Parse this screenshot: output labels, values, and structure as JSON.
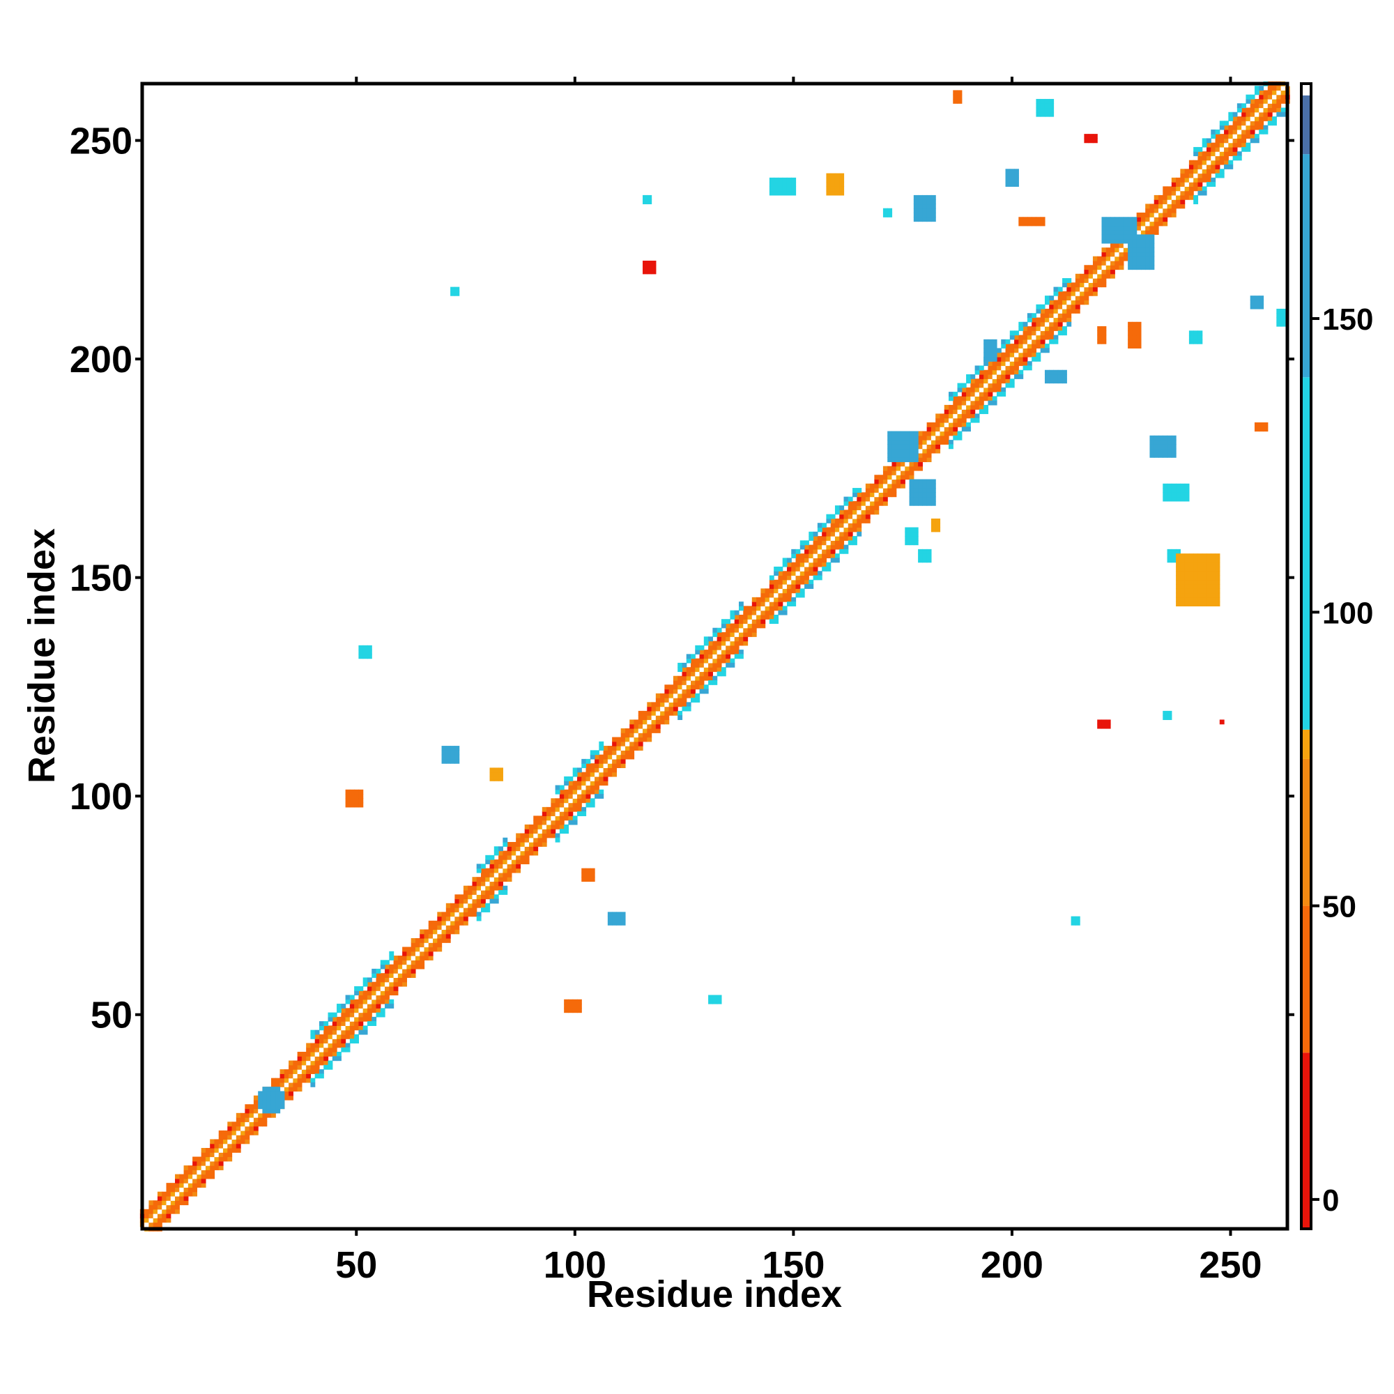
{
  "chart_data": {
    "type": "heatmap",
    "title": "",
    "xlabel": "Residue index",
    "ylabel": "Residue index",
    "xlim": [
      1,
      263
    ],
    "ylim": [
      1,
      263
    ],
    "x_ticks": [
      50,
      100,
      150,
      200,
      250
    ],
    "y_ticks": [
      50,
      100,
      150,
      200,
      250
    ],
    "colorbar": {
      "ticks": [
        0,
        50,
        100,
        150
      ],
      "range": [
        -5,
        190
      ],
      "bands": [
        {
          "from": -5,
          "to": 25,
          "color": "#e8140a"
        },
        {
          "from": 25,
          "to": 50,
          "color": "#f56a0a"
        },
        {
          "from": 50,
          "to": 75,
          "color": "#f38a12"
        },
        {
          "from": 75,
          "to": 80,
          "color": "#f5a30f"
        },
        {
          "from": 80,
          "to": 140,
          "color": "#23d4e3"
        },
        {
          "from": 140,
          "to": 178,
          "color": "#37a6d4"
        },
        {
          "from": 178,
          "to": 188,
          "color": "#4a70a8"
        },
        {
          "from": 188,
          "to": 190,
          "color": "#ffffff"
        }
      ]
    },
    "diagonal": {
      "colors": [
        "#e8140a",
        "#f56a0a",
        "#f38a12",
        "#f5a30f"
      ],
      "halo_segments": [
        [
          40,
          58
        ],
        [
          78,
          84
        ],
        [
          96,
          106
        ],
        [
          124,
          138
        ],
        [
          145,
          165
        ],
        [
          186,
          213
        ],
        [
          242,
          262
        ]
      ]
    },
    "clusters": [
      {
        "x": 31,
        "y": 31,
        "w": 6,
        "h": 4,
        "color": "#37a6d4"
      },
      {
        "x": 31,
        "y": 31,
        "w": 4,
        "h": 6,
        "color": "#37a6d4"
      },
      {
        "x": 72,
        "y": 110,
        "w": 4,
        "h": 4,
        "color": "#37a6d4"
      },
      {
        "x": 110,
        "y": 72,
        "w": 4,
        "h": 3,
        "color": "#37a6d4"
      },
      {
        "x": 117,
        "y": 221,
        "w": 3,
        "h": 3,
        "color": "#e8140a"
      },
      {
        "x": 221,
        "y": 117,
        "w": 3,
        "h": 2,
        "color": "#e8140a"
      },
      {
        "x": 117,
        "y": 237,
        "w": 2,
        "h": 2,
        "color": "#23d4e3"
      },
      {
        "x": 180,
        "y": 235,
        "w": 5,
        "h": 6,
        "color": "#37a6d4"
      },
      {
        "x": 235,
        "y": 180,
        "w": 6,
        "h": 5,
        "color": "#37a6d4"
      },
      {
        "x": 175,
        "y": 180,
        "w": 7,
        "h": 7,
        "color": "#37a6d4"
      },
      {
        "x": 180,
        "y": 170,
        "w": 6,
        "h": 6,
        "color": "#37a6d4"
      },
      {
        "x": 225,
        "y": 230,
        "w": 8,
        "h": 6,
        "color": "#37a6d4"
      },
      {
        "x": 230,
        "y": 225,
        "w": 6,
        "h": 8,
        "color": "#37a6d4"
      },
      {
        "x": 237,
        "y": 155,
        "w": 3,
        "h": 3,
        "color": "#23d4e3"
      },
      {
        "x": 180,
        "y": 155,
        "w": 3,
        "h": 3,
        "color": "#23d4e3"
      },
      {
        "x": 208,
        "y": 258,
        "w": 4,
        "h": 4,
        "color": "#23d4e3"
      },
      {
        "x": 262,
        "y": 210,
        "w": 2,
        "h": 4,
        "color": "#23d4e3"
      },
      {
        "x": 256,
        "y": 213,
        "w": 3,
        "h": 3,
        "color": "#37a6d4"
      },
      {
        "x": 236,
        "y": 119,
        "w": 2,
        "h": 2,
        "color": "#23d4e3"
      },
      {
        "x": 248,
        "y": 117,
        "w": 1,
        "h": 1,
        "color": "#e8140a"
      },
      {
        "x": 132,
        "y": 54,
        "w": 3,
        "h": 2,
        "color": "#23d4e3"
      },
      {
        "x": 52,
        "y": 133,
        "w": 3,
        "h": 3,
        "color": "#23d4e3"
      },
      {
        "x": 100,
        "y": 52,
        "w": 4,
        "h": 3,
        "color": "#f56a0a"
      },
      {
        "x": 50,
        "y": 100,
        "w": 4,
        "h": 4,
        "color": "#f56a0a"
      },
      {
        "x": 103,
        "y": 82,
        "w": 3,
        "h": 3,
        "color": "#f56a0a"
      },
      {
        "x": 82,
        "y": 105,
        "w": 3,
        "h": 3,
        "color": "#f5a30f"
      },
      {
        "x": 205,
        "y": 232,
        "w": 6,
        "h": 2,
        "color": "#f56a0a"
      },
      {
        "x": 221,
        "y": 206,
        "w": 2,
        "h": 4,
        "color": "#f56a0a"
      },
      {
        "x": 218,
        "y": 251,
        "w": 3,
        "h": 2,
        "color": "#e8140a"
      },
      {
        "x": 188,
        "y": 260,
        "w": 2,
        "h": 3,
        "color": "#f56a0a"
      },
      {
        "x": 243,
        "y": 150,
        "w": 10,
        "h": 12,
        "color": "#f5a30f"
      },
      {
        "x": 238,
        "y": 170,
        "w": 6,
        "h": 4,
        "color": "#23d4e3"
      },
      {
        "x": 148,
        "y": 240,
        "w": 6,
        "h": 4,
        "color": "#23d4e3"
      },
      {
        "x": 160,
        "y": 240,
        "w": 4,
        "h": 5,
        "color": "#f5a30f"
      },
      {
        "x": 177,
        "y": 160,
        "w": 3,
        "h": 4,
        "color": "#23d4e3"
      },
      {
        "x": 183,
        "y": 162,
        "w": 2,
        "h": 3,
        "color": "#f5a30f"
      },
      {
        "x": 215,
        "y": 72,
        "w": 2,
        "h": 2,
        "color": "#23d4e3"
      },
      {
        "x": 73,
        "y": 216,
        "w": 2,
        "h": 2,
        "color": "#23d4e3"
      },
      {
        "x": 242,
        "y": 205,
        "w": 3,
        "h": 3,
        "color": "#23d4e3"
      },
      {
        "x": 200,
        "y": 242,
        "w": 3,
        "h": 4,
        "color": "#37a6d4"
      },
      {
        "x": 257,
        "y": 185,
        "w": 3,
        "h": 2,
        "color": "#f56a0a"
      },
      {
        "x": 210,
        "y": 196,
        "w": 5,
        "h": 3,
        "color": "#37a6d4"
      },
      {
        "x": 195,
        "y": 202,
        "w": 3,
        "h": 5,
        "color": "#37a6d4"
      },
      {
        "x": 228,
        "y": 206,
        "w": 3,
        "h": 6,
        "color": "#f56a0a"
      },
      {
        "x": 172,
        "y": 234,
        "w": 2,
        "h": 2,
        "color": "#23d4e3"
      }
    ]
  }
}
